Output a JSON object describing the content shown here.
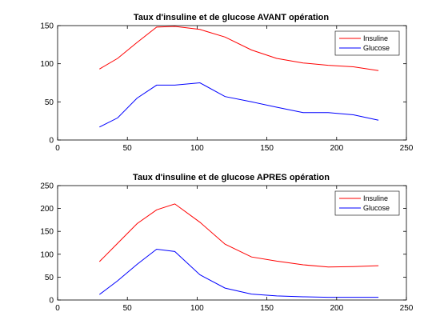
{
  "chart_data": [
    {
      "type": "line",
      "title": "Taux d'insuline et de glucose AVANT opération",
      "xlabel": "",
      "ylabel": "",
      "xlim": [
        0,
        250
      ],
      "ylim": [
        0,
        150
      ],
      "xticks": [
        "0",
        "50",
        "100",
        "150",
        "200",
        "250"
      ],
      "yticks": [
        "0",
        "50",
        "100",
        "150"
      ],
      "grid": false,
      "legend_position": "top-right",
      "x": [
        30,
        43,
        57,
        71,
        84,
        102,
        120,
        139,
        157,
        176,
        194,
        212,
        230
      ],
      "series": [
        {
          "name": "Insuline",
          "color": "#ff0000",
          "values": [
            93,
            107,
            128,
            148,
            149,
            145,
            135,
            118,
            107,
            101,
            98,
            96,
            91
          ]
        },
        {
          "name": "Glucose",
          "color": "#0000ff",
          "values": [
            17,
            29,
            55,
            72,
            72,
            75,
            57,
            50,
            43,
            36,
            36,
            33,
            26
          ]
        }
      ]
    },
    {
      "type": "line",
      "title": "Taux d'insuline et de glucose APRES opération",
      "xlabel": "",
      "ylabel": "",
      "xlim": [
        0,
        250
      ],
      "ylim": [
        0,
        250
      ],
      "xticks": [
        "0",
        "50",
        "100",
        "150",
        "200",
        "250"
      ],
      "yticks": [
        "0",
        "50",
        "100",
        "150",
        "200",
        "250"
      ],
      "grid": false,
      "legend_position": "top-right",
      "x": [
        30,
        43,
        57,
        71,
        84,
        102,
        120,
        139,
        157,
        176,
        194,
        212,
        230
      ],
      "series": [
        {
          "name": "Insuline",
          "color": "#ff0000",
          "values": [
            84,
            124,
            167,
            197,
            210,
            170,
            122,
            94,
            85,
            77,
            72,
            73,
            75
          ]
        },
        {
          "name": "Glucose",
          "color": "#0000ff",
          "values": [
            12,
            42,
            78,
            111,
            106,
            55,
            26,
            13,
            9,
            7,
            6,
            6,
            6
          ]
        }
      ]
    }
  ]
}
